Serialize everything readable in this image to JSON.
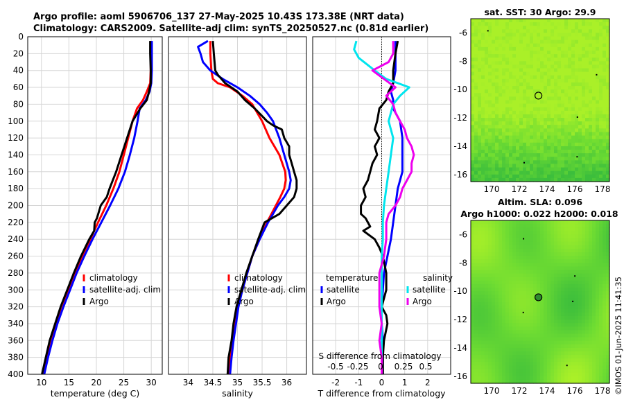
{
  "title": {
    "line1": "Argo profile: aoml 5906706_137 27-May-2025 10.43S 173.38E (NRT data)",
    "line2": "Climatology: CARS2009. Satellite-adj clim: synTS_20250527.nc (0.81d earlier)"
  },
  "colors": {
    "clim": "#ff0000",
    "sat": "#0000ff",
    "argo": "#000000",
    "salsat": "#00e5ee",
    "salargo": "#ee00ee"
  },
  "depth_axis": {
    "ticks": [
      0,
      20,
      40,
      60,
      80,
      100,
      120,
      140,
      160,
      180,
      200,
      220,
      240,
      260,
      280,
      300,
      320,
      340,
      360,
      380,
      400
    ],
    "range": [
      0,
      400
    ]
  },
  "chart_data": [
    {
      "type": "line",
      "name": "temperature",
      "xlabel": "temperature (deg C)",
      "xlim": [
        7.5,
        32
      ],
      "xticks": [
        10,
        15,
        20,
        25,
        30
      ],
      "legend": [
        "climatology",
        "satellite-adj. clim",
        "Argo"
      ],
      "series": [
        {
          "name": "climatology",
          "color": "#ff0000",
          "depth": [
            5,
            20,
            40,
            55,
            65,
            75,
            85,
            100,
            120,
            140,
            160,
            180,
            200,
            220,
            240,
            260,
            280,
            300,
            320,
            340,
            360,
            380,
            400
          ],
          "values": [
            29.9,
            29.9,
            29.9,
            29.8,
            29.2,
            28.5,
            27.4,
            26.6,
            25.8,
            25.0,
            24.2,
            23.1,
            21.8,
            20.3,
            18.9,
            17.5,
            16.2,
            15.0,
            13.9,
            12.8,
            11.9,
            11.1,
            10.4
          ]
        },
        {
          "name": "satellite-adj. clim",
          "color": "#0000ff",
          "depth": [
            5,
            20,
            40,
            55,
            65,
            75,
            85,
            100,
            120,
            140,
            160,
            180,
            200,
            220,
            240,
            260,
            280,
            300,
            320,
            340,
            360,
            380,
            400
          ],
          "values": [
            30.1,
            30.1,
            30.1,
            30.0,
            29.7,
            29.0,
            27.9,
            27.5,
            26.9,
            26.1,
            25.2,
            24.0,
            22.5,
            20.9,
            19.3,
            17.8,
            16.4,
            15.2,
            14.0,
            12.9,
            12.0,
            11.2,
            10.5
          ]
        },
        {
          "name": "Argo",
          "color": "#000000",
          "depth": [
            5,
            20,
            40,
            55,
            65,
            75,
            85,
            100,
            120,
            140,
            160,
            180,
            190,
            200,
            215,
            220,
            230,
            240,
            260,
            280,
            300,
            320,
            340,
            360,
            380,
            400
          ],
          "values": [
            29.8,
            29.8,
            29.9,
            29.9,
            29.6,
            29.2,
            28.0,
            26.6,
            25.6,
            24.6,
            23.6,
            22.4,
            21.9,
            20.8,
            20.1,
            19.7,
            19.6,
            18.7,
            17.2,
            15.9,
            14.7,
            13.5,
            12.5,
            11.5,
            10.8,
            10.1
          ]
        }
      ]
    },
    {
      "type": "line",
      "name": "salinity",
      "xlabel": "salinity",
      "xlim": [
        33.6,
        36.4
      ],
      "xticks": [
        34,
        34.5,
        35,
        35.5,
        36
      ],
      "legend": [
        "climatology",
        "satellite-adj. clim",
        "Argo"
      ],
      "series": [
        {
          "name": "climatology",
          "color": "#ff0000",
          "depth": [
            5,
            20,
            40,
            50,
            55,
            60,
            70,
            80,
            90,
            100,
            120,
            140,
            160,
            170,
            180,
            190,
            200,
            220,
            240,
            260,
            280,
            300,
            320,
            340,
            360,
            380,
            400
          ],
          "values": [
            34.45,
            34.45,
            34.47,
            34.5,
            34.6,
            34.85,
            35.1,
            35.3,
            35.4,
            35.5,
            35.65,
            35.85,
            35.97,
            35.98,
            35.95,
            35.87,
            35.78,
            35.6,
            35.45,
            35.3,
            35.2,
            35.1,
            35.0,
            34.95,
            34.9,
            34.85,
            34.82
          ]
        },
        {
          "name": "satellite-adj. clim",
          "color": "#0000ff",
          "depth": [
            5,
            12,
            20,
            30,
            40,
            50,
            60,
            70,
            80,
            90,
            100,
            120,
            140,
            160,
            170,
            180,
            190,
            200,
            220,
            240,
            260,
            280,
            300,
            320,
            340,
            360,
            380,
            400
          ],
          "values": [
            34.4,
            34.2,
            34.25,
            34.3,
            34.45,
            34.7,
            35.0,
            35.25,
            35.45,
            35.6,
            35.72,
            35.85,
            35.95,
            36.05,
            36.08,
            36.05,
            35.95,
            35.82,
            35.62,
            35.45,
            35.3,
            35.2,
            35.1,
            35.02,
            34.97,
            34.92,
            34.88,
            34.85
          ]
        },
        {
          "name": "Argo",
          "color": "#000000",
          "depth": [
            5,
            20,
            40,
            45,
            55,
            65,
            75,
            85,
            100,
            105,
            110,
            120,
            130,
            140,
            150,
            160,
            170,
            180,
            190,
            200,
            210,
            220,
            240,
            260,
            280,
            300,
            320,
            340,
            360,
            380,
            400
          ],
          "values": [
            34.5,
            34.52,
            34.55,
            34.6,
            34.75,
            35.0,
            35.15,
            35.35,
            35.6,
            35.72,
            35.9,
            35.95,
            36.05,
            36.05,
            36.1,
            36.15,
            36.2,
            36.2,
            36.15,
            36.0,
            35.85,
            35.55,
            35.42,
            35.3,
            35.18,
            35.08,
            34.98,
            34.92,
            34.88,
            34.82,
            34.8
          ]
        }
      ]
    },
    {
      "type": "line",
      "name": "difference from climatology",
      "xlabel": "T difference from climatology",
      "xlabel2": "S difference from climatology",
      "xlim": [
        -3,
        3
      ],
      "xticks": [
        -2,
        -1,
        0,
        1,
        2
      ],
      "xticks2": [
        -0.5,
        -0.25,
        0,
        0.25,
        0.5
      ],
      "xticks2_labels": [
        "-0.5",
        "-0.25",
        "0",
        "0.25",
        "0.5"
      ],
      "legend_temp_title": "temperature",
      "legend_sal_title": "salinity",
      "legend_temp": [
        "satellite",
        "Argo"
      ],
      "legend_sal": [
        "satellite",
        "Argo"
      ],
      "series": [
        {
          "name": "temperature satellite",
          "color": "#0000ff",
          "depth": [
            5,
            20,
            40,
            55,
            65,
            75,
            85,
            100,
            120,
            140,
            160,
            180,
            200,
            220,
            240,
            260,
            280,
            300,
            320,
            340,
            360,
            380,
            400
          ],
          "values": [
            0.6,
            0.6,
            0.6,
            0.5,
            0.4,
            0.5,
            0.5,
            0.8,
            0.9,
            0.9,
            0.9,
            0.7,
            0.6,
            0.5,
            0.4,
            0.25,
            0.1,
            0.05,
            0.0,
            0.0,
            0.05,
            0.05,
            0.05
          ]
        },
        {
          "name": "temperature Argo",
          "color": "#000000",
          "depth": [
            5,
            20,
            40,
            55,
            65,
            75,
            80,
            85,
            100,
            110,
            120,
            130,
            140,
            150,
            160,
            170,
            180,
            190,
            200,
            210,
            215,
            220,
            225,
            230,
            240,
            250,
            260,
            280,
            300,
            320,
            330,
            340,
            360,
            380,
            400
          ],
          "values": [
            0.7,
            0.6,
            0.5,
            0.5,
            0.3,
            0.2,
            0.05,
            -0.1,
            -0.2,
            -0.3,
            -0.1,
            -0.3,
            -0.2,
            -0.4,
            -0.5,
            -0.6,
            -0.8,
            -0.7,
            -0.9,
            -0.9,
            -0.7,
            -0.6,
            -0.5,
            -0.8,
            -0.3,
            -0.1,
            0.05,
            0.2,
            0.2,
            0.0,
            0.2,
            0.25,
            0.1,
            0.05,
            0.05
          ]
        },
        {
          "name": "salinity satellite",
          "color": "#00e5ee",
          "depth": [
            5,
            15,
            25,
            40,
            50,
            60,
            70,
            80,
            90,
            100,
            120,
            140,
            160,
            180,
            200,
            220,
            240,
            260,
            280,
            300,
            320,
            340,
            360,
            380,
            400
          ],
          "values": [
            -1.1,
            -1.2,
            -1.0,
            -0.3,
            0.2,
            1.2,
            0.8,
            0.5,
            0.4,
            0.3,
            0.5,
            0.4,
            0.3,
            0.2,
            0.1,
            0.05,
            0.05,
            0.0,
            0.0,
            0.0,
            0.0,
            0.0,
            0.0,
            0.0,
            0.0
          ]
        },
        {
          "name": "salinity Argo",
          "color": "#ee00ee",
          "depth": [
            5,
            20,
            30,
            40,
            50,
            60,
            70,
            80,
            90,
            100,
            110,
            120,
            130,
            140,
            150,
            160,
            170,
            180,
            190,
            200,
            210,
            220,
            240,
            260,
            280,
            300,
            320,
            340,
            360,
            380,
            400
          ],
          "values": [
            0.5,
            0.5,
            0.3,
            -0.4,
            0.1,
            0.6,
            0.2,
            0.5,
            0.6,
            0.8,
            1.0,
            1.1,
            1.3,
            1.4,
            1.3,
            1.3,
            1.1,
            0.9,
            0.8,
            0.6,
            0.3,
            0.2,
            0.2,
            0.1,
            -0.1,
            -0.1,
            -0.1,
            0.0,
            -0.1,
            0.0,
            0.0
          ]
        }
      ]
    },
    {
      "type": "heatmap",
      "name": "sat-sst",
      "title": "sat. SST: 30 Argo: 29.9",
      "xlim": [
        168.5,
        178.5
      ],
      "ylim": [
        -16.5,
        -5
      ],
      "xticks": [
        170,
        172,
        174,
        176,
        178
      ],
      "yticks": [
        -6,
        -8,
        -10,
        -12,
        -14,
        -16
      ],
      "marker": {
        "lon": 173.38,
        "lat": -10.43,
        "filled": false
      }
    },
    {
      "type": "heatmap",
      "name": "altim-sla",
      "title": "Altim. SLA: 0.096",
      "title2": "Argo h1000: 0.022 h2000: 0.018",
      "xlim": [
        168.5,
        178.5
      ],
      "ylim": [
        -16.5,
        -5
      ],
      "xticks": [
        170,
        172,
        174,
        176,
        178
      ],
      "yticks": [
        -6,
        -8,
        -10,
        -12,
        -14,
        -16
      ],
      "marker": {
        "lon": 173.38,
        "lat": -10.43,
        "filled": true
      }
    }
  ],
  "watermark": "©IMOS 01-Jun-2025 11:41:35"
}
